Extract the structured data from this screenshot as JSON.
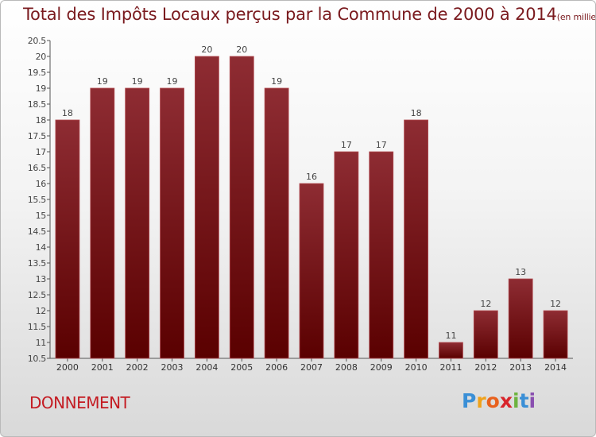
{
  "title": "Total des Impôts Locaux perçus par la Commune de 2000 à 2014",
  "unit_note": "(en milliers d'€)",
  "commune": "DONNEMENT",
  "brand": {
    "letters": [
      "P",
      "r",
      "o",
      "x",
      "i",
      "t",
      "i"
    ],
    "colors": [
      "#3a8fd6",
      "#f0a21a",
      "#e8611d",
      "#d8242b",
      "#6db33f",
      "#3a8fd6",
      "#8a4fb0"
    ]
  },
  "colors": {
    "bar_top": "#8e2c33",
    "bar_bottom": "#5a0000",
    "title": "#7a1a1e",
    "commune": "#c41c23"
  },
  "chart_data": {
    "type": "bar",
    "categories": [
      "2000",
      "2001",
      "2002",
      "2003",
      "2004",
      "2005",
      "2006",
      "2007",
      "2008",
      "2009",
      "2010",
      "2011",
      "2012",
      "2013",
      "2014"
    ],
    "values": [
      18,
      19,
      19,
      19,
      20,
      20,
      19,
      16,
      17,
      17,
      18,
      11,
      12,
      13,
      12
    ],
    "ylim": [
      10.5,
      20.5
    ],
    "yticks": [
      "10.5",
      "11",
      "11.5",
      "12",
      "12.5",
      "13",
      "13.5",
      "14",
      "14.5",
      "15",
      "15.5",
      "16",
      "16.5",
      "17",
      "17.5",
      "18",
      "18.5",
      "19",
      "19.5",
      "20",
      "20.5"
    ],
    "grid": false,
    "data_labels": true
  }
}
